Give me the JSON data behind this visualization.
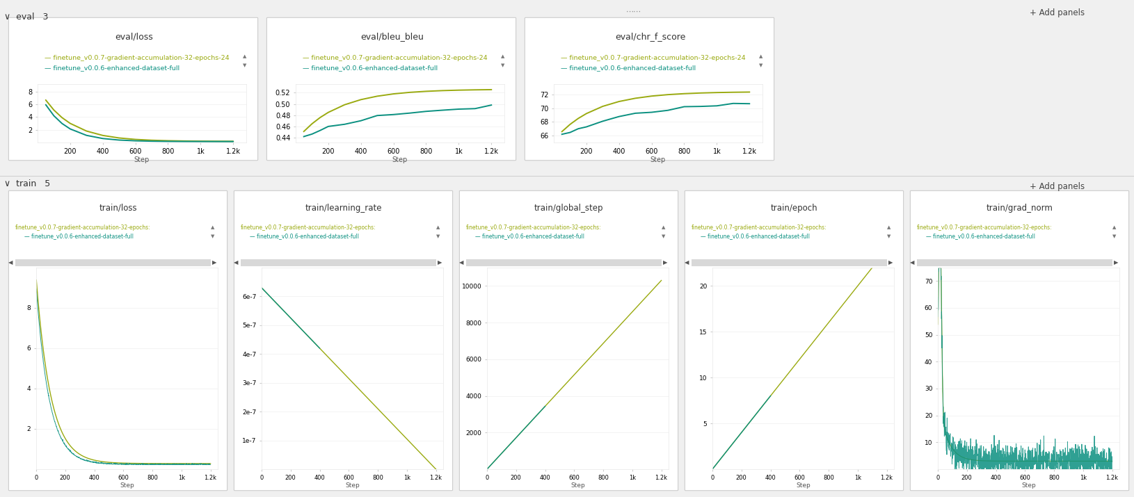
{
  "bg_color": "#f0f0f0",
  "panel_bg": "#ffffff",
  "outer_bg": "#f0f0f0",
  "color_yellow": "#9aaa10",
  "color_teal": "#0a9080",
  "label_yellow": "finetune_v0.0.7-gradient-accumulation-32-epochs-24",
  "label_teal": "finetune_v0.0.6-enhanced-dataset-full",
  "eval_label": "eval   3",
  "train_label": "train   5"
}
